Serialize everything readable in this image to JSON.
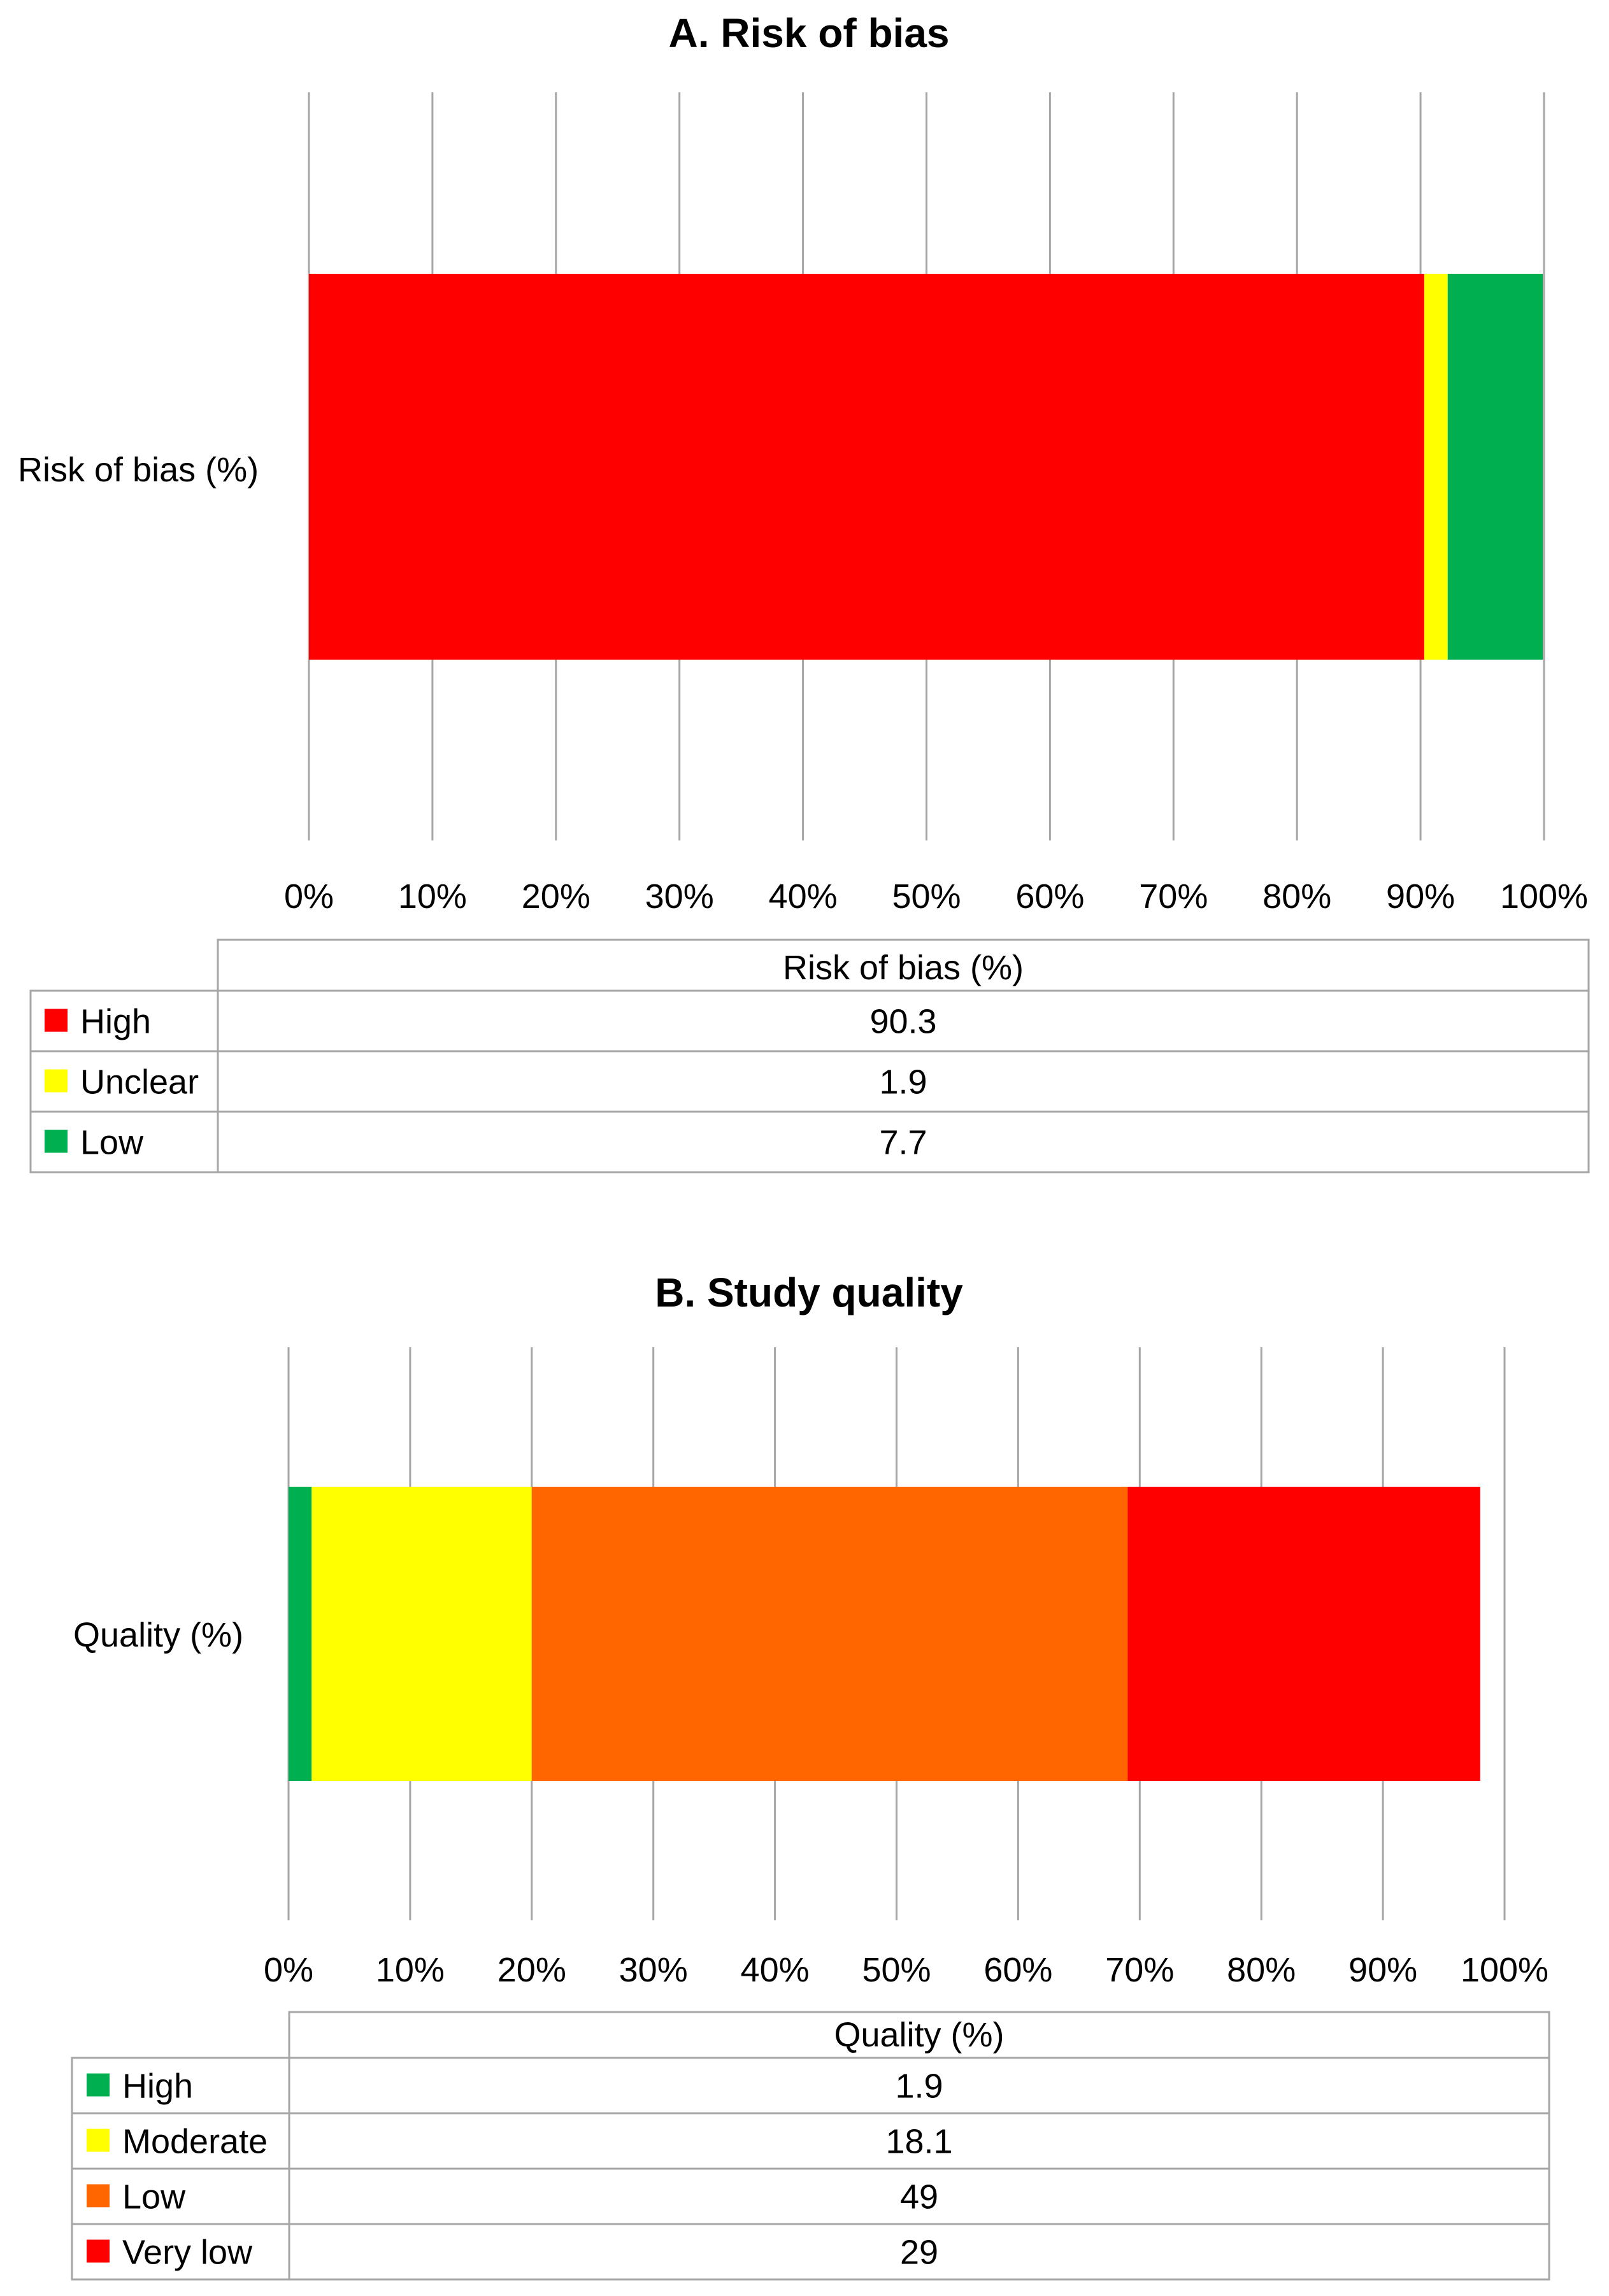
{
  "chart_data": [
    {
      "type": "bar",
      "stacked": true,
      "orientation": "horizontal",
      "title": "A. Risk of bias",
      "categories": [
        "Risk of bias (%)"
      ],
      "series": [
        {
          "name": "High",
          "values": [
            90.3
          ],
          "color": "#ff0000"
        },
        {
          "name": "Unclear",
          "values": [
            1.9
          ],
          "color": "#ffff00"
        },
        {
          "name": "Low",
          "values": [
            7.7
          ],
          "color": "#00b050"
        }
      ],
      "xlim": [
        0,
        100
      ],
      "xticks": [
        "0%",
        "10%",
        "20%",
        "30%",
        "40%",
        "50%",
        "60%",
        "70%",
        "80%",
        "90%",
        "100%"
      ],
      "grid": true,
      "table_header": "Risk of bias (%)",
      "table_values": [
        "90.3",
        "1.9",
        "7.7"
      ]
    },
    {
      "type": "bar",
      "stacked": true,
      "orientation": "horizontal",
      "title": "B. Study quality",
      "categories": [
        "Quality (%)"
      ],
      "series": [
        {
          "name": "High",
          "values": [
            1.9
          ],
          "color": "#00b050"
        },
        {
          "name": "Moderate",
          "values": [
            18.1
          ],
          "color": "#ffff00"
        },
        {
          "name": "Low",
          "values": [
            49
          ],
          "color": "#ff6600"
        },
        {
          "name": "Very low",
          "values": [
            29
          ],
          "color": "#ff0000"
        }
      ],
      "xlim": [
        0,
        100
      ],
      "xticks": [
        "0%",
        "10%",
        "20%",
        "30%",
        "40%",
        "50%",
        "60%",
        "70%",
        "80%",
        "90%",
        "100%"
      ],
      "grid": true,
      "table_header": "Quality (%)",
      "table_values": [
        "1.9",
        "18.1",
        "49",
        "29"
      ]
    }
  ]
}
